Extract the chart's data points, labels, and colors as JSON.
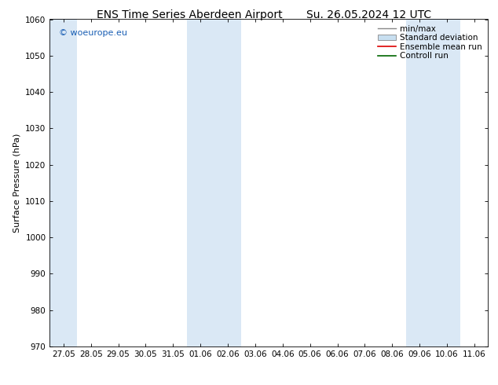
{
  "title_left": "ENS Time Series Aberdeen Airport",
  "title_right": "Su. 26.05.2024 12 UTC",
  "ylabel": "Surface Pressure (hPa)",
  "ylim": [
    970,
    1060
  ],
  "yticks": [
    970,
    980,
    990,
    1000,
    1010,
    1020,
    1030,
    1040,
    1050,
    1060
  ],
  "xticklabels": [
    "27.05",
    "28.05",
    "29.05",
    "30.05",
    "31.05",
    "01.06",
    "02.06",
    "03.06",
    "04.06",
    "05.06",
    "06.06",
    "07.06",
    "08.06",
    "09.06",
    "10.06",
    "11.06"
  ],
  "background_color": "#ffffff",
  "plot_bg_color": "#ffffff",
  "shaded_columns": [
    0,
    5,
    6,
    13,
    14
  ],
  "shaded_color": "#dae8f5",
  "watermark_text": "© woeurope.eu",
  "watermark_color": "#1a5fb4",
  "legend_entries": [
    {
      "label": "min/max",
      "color": "#aaaaaa",
      "style": "minmax"
    },
    {
      "label": "Standard deviation",
      "color": "#c8dff0",
      "style": "stddev"
    },
    {
      "label": "Ensemble mean run",
      "color": "#dd0000",
      "style": "line"
    },
    {
      "label": "Controll run",
      "color": "#006600",
      "style": "line"
    }
  ],
  "title_fontsize": 10,
  "axis_label_fontsize": 8,
  "tick_fontsize": 7.5,
  "legend_fontsize": 7.5,
  "watermark_fontsize": 8
}
